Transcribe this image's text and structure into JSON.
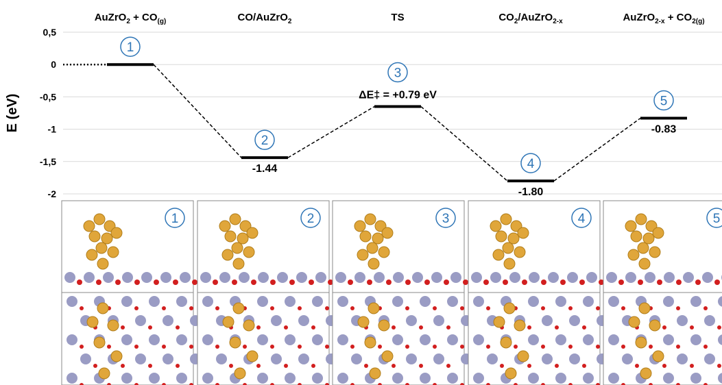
{
  "chart_data": {
    "type": "energy-levels",
    "y_label": "E (eV)",
    "categories": [
      [
        {
          "text": "AuZrO"
        },
        {
          "text": "2",
          "sub": true
        },
        {
          "text": " + CO"
        },
        {
          "text": "(g)",
          "sub": true
        }
      ],
      [
        {
          "text": "CO/AuZrO"
        },
        {
          "text": "2",
          "sub": true
        }
      ],
      [
        {
          "text": "TS"
        }
      ],
      [
        {
          "text": "CO"
        },
        {
          "text": "2",
          "sub": true
        },
        {
          "text": "/AuZrO"
        },
        {
          "text": "2-x",
          "sub": true
        }
      ],
      [
        {
          "text": "AuZrO"
        },
        {
          "text": "2-x",
          "sub": true
        },
        {
          "text": " + CO"
        },
        {
          "text": "2(g)",
          "sub": true
        }
      ]
    ],
    "markers": [
      "1",
      "2",
      "3",
      "4",
      "5"
    ],
    "values": [
      0,
      -1.44,
      -0.65,
      -1.8,
      -0.83
    ],
    "value_labels": [
      null,
      "-1.44",
      null,
      "-1.80",
      "-0.83"
    ],
    "annotation": "ΔE‡ = +0.79 eV",
    "ylim": [
      -2,
      0.5
    ],
    "yticks": [
      {
        "value": 0.5,
        "label": "0,5"
      },
      0,
      {
        "value": -0.5,
        "label": "-0,5"
      },
      -1,
      {
        "value": -1.5,
        "label": "-1,5"
      },
      -2
    ],
    "grid": true,
    "color": "#000000",
    "marker_color": "#2e75b6"
  }
}
